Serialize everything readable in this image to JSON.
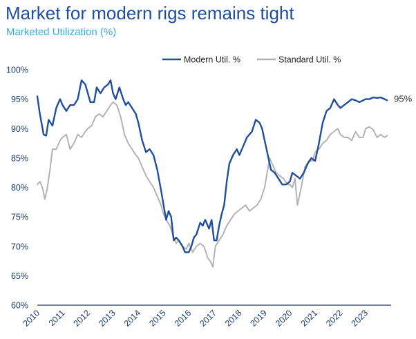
{
  "header": {
    "title": "Market for modern rigs remains tight",
    "subtitle": "Marketed Utilization (%)"
  },
  "colors": {
    "title": "#1f4e9c",
    "subtitle": "#3fa9e0",
    "modern": "#1f4e9c",
    "standard": "#b3b3b3",
    "axis": "#1f3a70"
  },
  "chart_data": {
    "type": "line",
    "title": "Market for modern rigs remains tight",
    "subtitle": "Marketed Utilization (%)",
    "xlabel": "",
    "ylabel": "",
    "xlim": [
      2010.0,
      2023.9
    ],
    "ylim": [
      60,
      100
    ],
    "y_ticks": [
      60,
      65,
      70,
      75,
      80,
      85,
      90,
      95,
      100
    ],
    "y_tick_labels": [
      "60%",
      "65%",
      "70%",
      "75%",
      "80%",
      "85%",
      "90%",
      "95%",
      "100%"
    ],
    "x_ticks": [
      2010,
      2011,
      2012,
      2013,
      2014,
      2015,
      2016,
      2017,
      2018,
      2019,
      2020,
      2021,
      2022,
      2023
    ],
    "x_tick_labels": [
      "2010",
      "2011",
      "2012",
      "2013",
      "2014",
      "2015",
      "2016",
      "2017",
      "2018",
      "2019",
      "2020",
      "2021",
      "2022",
      "2023"
    ],
    "grid": false,
    "legend": "top-center",
    "end_label": "95%",
    "series": [
      {
        "name": "Modern Util. %",
        "color": "#1f4e9c",
        "x": [
          2010.0,
          2010.1,
          2010.25,
          2010.35,
          2010.45,
          2010.6,
          2010.75,
          2010.9,
          2011.0,
          2011.15,
          2011.3,
          2011.45,
          2011.6,
          2011.75,
          2011.9,
          2012.0,
          2012.1,
          2012.25,
          2012.35,
          2012.5,
          2012.65,
          2012.8,
          2012.9,
          2013.0,
          2013.1,
          2013.25,
          2013.4,
          2013.5,
          2013.6,
          2013.75,
          2013.9,
          2014.0,
          2014.15,
          2014.3,
          2014.45,
          2014.6,
          2014.75,
          2014.9,
          2015.0,
          2015.1,
          2015.2,
          2015.3,
          2015.4,
          2015.5,
          2015.6,
          2015.75,
          2015.85,
          2016.0,
          2016.1,
          2016.2,
          2016.3,
          2016.45,
          2016.55,
          2016.65,
          2016.8,
          2016.9,
          2017.0,
          2017.1,
          2017.2,
          2017.3,
          2017.4,
          2017.5,
          2017.6,
          2017.75,
          2017.9,
          2018.0,
          2018.15,
          2018.3,
          2018.5,
          2018.65,
          2018.8,
          2018.9,
          2019.0,
          2019.1,
          2019.25,
          2019.4,
          2019.55,
          2019.7,
          2019.85,
          2020.0,
          2020.1,
          2020.25,
          2020.4,
          2020.55,
          2020.7,
          2020.85,
          2021.0,
          2021.15,
          2021.3,
          2021.45,
          2021.6,
          2021.75,
          2021.9,
          2022.0,
          2022.15,
          2022.3,
          2022.45,
          2022.6,
          2022.75,
          2022.9,
          2023.0,
          2023.15,
          2023.3,
          2023.45,
          2023.6,
          2023.75,
          2023.85
        ],
        "y": [
          95.5,
          92.5,
          89.0,
          88.8,
          91.5,
          90.5,
          93.5,
          95.0,
          94.0,
          93.0,
          94.0,
          94.0,
          95.0,
          98.2,
          97.5,
          96.0,
          94.5,
          94.5,
          97.0,
          96.0,
          97.0,
          97.5,
          98.2,
          96.0,
          95.0,
          97.0,
          95.0,
          94.0,
          94.5,
          93.5,
          92.5,
          91.0,
          88.0,
          86.0,
          86.5,
          85.5,
          83.0,
          79.5,
          77.0,
          74.5,
          76.0,
          75.0,
          71.0,
          71.5,
          71.0,
          70.0,
          69.0,
          69.0,
          70.0,
          71.5,
          72.0,
          74.0,
          73.5,
          74.5,
          73.0,
          74.5,
          71.0,
          71.0,
          73.5,
          75.5,
          77.0,
          81.0,
          84.0,
          85.5,
          86.5,
          85.5,
          87.0,
          88.5,
          89.5,
          91.5,
          91.0,
          90.0,
          88.0,
          86.0,
          83.0,
          82.5,
          81.5,
          80.5,
          80.5,
          81.0,
          82.5,
          82.0,
          81.5,
          82.5,
          84.0,
          85.0,
          84.5,
          87.5,
          91.0,
          93.0,
          93.5,
          95.0,
          94.0,
          93.5,
          94.0,
          94.5,
          95.0,
          94.8,
          94.5,
          94.8,
          95.0,
          95.0,
          95.3,
          95.2,
          95.3,
          95.0,
          94.8
        ]
      },
      {
        "name": "Standard Util. %",
        "color": "#b3b3b3",
        "x": [
          2010.0,
          2010.1,
          2010.2,
          2010.3,
          2010.4,
          2010.5,
          2010.6,
          2010.75,
          2010.9,
          2011.0,
          2011.15,
          2011.3,
          2011.45,
          2011.6,
          2011.75,
          2011.9,
          2012.0,
          2012.15,
          2012.3,
          2012.45,
          2012.6,
          2012.75,
          2012.9,
          2013.0,
          2013.15,
          2013.3,
          2013.45,
          2013.6,
          2013.75,
          2013.9,
          2014.0,
          2014.15,
          2014.3,
          2014.45,
          2014.6,
          2014.75,
          2014.9,
          2015.0,
          2015.1,
          2015.25,
          2015.4,
          2015.5,
          2015.6,
          2015.75,
          2015.9,
          2016.0,
          2016.15,
          2016.3,
          2016.45,
          2016.6,
          2016.75,
          2016.85,
          2016.95,
          2017.05,
          2017.2,
          2017.35,
          2017.5,
          2017.65,
          2017.8,
          2017.95,
          2018.1,
          2018.25,
          2018.4,
          2018.55,
          2018.7,
          2018.85,
          2019.0,
          2019.1,
          2019.2,
          2019.3,
          2019.45,
          2019.6,
          2019.75,
          2019.9,
          2020.0,
          2020.1,
          2020.2,
          2020.3,
          2020.45,
          2020.6,
          2020.75,
          2020.9,
          2021.0,
          2021.15,
          2021.3,
          2021.45,
          2021.6,
          2021.75,
          2021.9,
          2022.0,
          2022.15,
          2022.3,
          2022.45,
          2022.6,
          2022.75,
          2022.9,
          2023.0,
          2023.15,
          2023.3,
          2023.45,
          2023.6,
          2023.75,
          2023.85
        ],
        "y": [
          80.5,
          81.0,
          80.0,
          78.0,
          80.0,
          83.0,
          86.5,
          86.5,
          88.0,
          88.5,
          89.0,
          86.5,
          87.5,
          89.0,
          88.5,
          89.5,
          90.0,
          90.5,
          92.0,
          92.5,
          92.0,
          93.0,
          94.0,
          94.5,
          94.0,
          92.0,
          89.0,
          87.5,
          86.5,
          85.5,
          85.0,
          83.5,
          82.0,
          81.0,
          80.0,
          78.5,
          77.0,
          75.5,
          74.5,
          73.5,
          71.5,
          70.5,
          71.0,
          70.0,
          69.5,
          70.5,
          69.0,
          70.0,
          70.5,
          70.0,
          68.0,
          67.5,
          66.5,
          70.0,
          71.0,
          72.0,
          73.5,
          74.5,
          75.5,
          76.0,
          76.5,
          77.0,
          76.0,
          76.5,
          77.0,
          78.0,
          80.0,
          82.5,
          85.0,
          84.0,
          82.5,
          82.0,
          81.5,
          80.5,
          80.5,
          80.0,
          81.5,
          77.0,
          80.0,
          83.5,
          84.5,
          84.5,
          86.0,
          86.5,
          87.5,
          88.0,
          89.0,
          89.5,
          90.0,
          89.0,
          88.5,
          88.5,
          88.0,
          89.5,
          88.5,
          88.5,
          90.0,
          90.3,
          89.8,
          88.5,
          89.0,
          88.5,
          88.8
        ]
      }
    ]
  }
}
